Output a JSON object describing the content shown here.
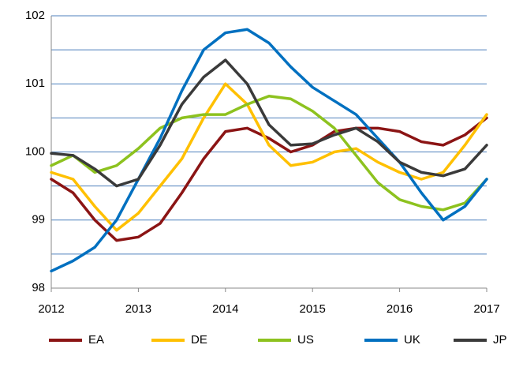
{
  "chart_data": {
    "type": "line",
    "x": [
      2012,
      2012.25,
      2012.5,
      2012.75,
      2013,
      2013.25,
      2013.5,
      2013.75,
      2014,
      2014.25,
      2014.5,
      2014.75,
      2015,
      2015.25,
      2015.5,
      2015.75,
      2016,
      2016.25,
      2016.5,
      2016.75,
      2017
    ],
    "series": [
      {
        "name": "EA",
        "color": "#8b1414",
        "values": [
          99.6,
          99.4,
          99.0,
          98.7,
          98.75,
          98.95,
          99.4,
          99.9,
          100.3,
          100.35,
          100.2,
          100.0,
          100.1,
          100.3,
          100.35,
          100.35,
          100.3,
          100.15,
          100.1,
          100.25,
          100.5
        ]
      },
      {
        "name": "DE",
        "color": "#ffc000",
        "values": [
          99.7,
          99.6,
          99.2,
          98.85,
          99.1,
          99.5,
          99.9,
          100.5,
          101.0,
          100.7,
          100.1,
          99.8,
          99.85,
          100.0,
          100.05,
          99.85,
          99.7,
          99.6,
          99.7,
          100.1,
          100.55
        ]
      },
      {
        "name": "US",
        "color": "#8dc21f",
        "values": [
          99.8,
          99.95,
          99.7,
          99.8,
          100.05,
          100.35,
          100.5,
          100.55,
          100.55,
          100.7,
          100.82,
          100.78,
          100.6,
          100.35,
          99.95,
          99.55,
          99.3,
          99.2,
          99.15,
          99.25,
          99.6
        ]
      },
      {
        "name": "UK",
        "color": "#0070c0",
        "values": [
          98.25,
          98.4,
          98.6,
          99.0,
          99.6,
          100.2,
          100.9,
          101.5,
          101.75,
          101.8,
          101.6,
          101.25,
          100.95,
          100.75,
          100.55,
          100.2,
          99.85,
          99.4,
          99.0,
          99.2,
          99.6
        ]
      },
      {
        "name": "JP",
        "color": "#3a3a3a",
        "values": [
          99.98,
          99.95,
          99.75,
          99.5,
          99.6,
          100.1,
          100.7,
          101.1,
          101.35,
          101.0,
          100.4,
          100.1,
          100.12,
          100.25,
          100.35,
          100.15,
          99.85,
          99.7,
          99.65,
          99.75,
          100.1
        ]
      }
    ],
    "xlim": [
      2012,
      2017
    ],
    "xticks": [
      2012,
      2013,
      2014,
      2015,
      2016,
      2017
    ],
    "ylim": [
      98,
      102
    ],
    "yticks": [
      98,
      99,
      100,
      101,
      102
    ],
    "ygrid": [
      98.5,
      99,
      99.5,
      100,
      100.5,
      101,
      101.5,
      102
    ],
    "legend": "bottom"
  }
}
